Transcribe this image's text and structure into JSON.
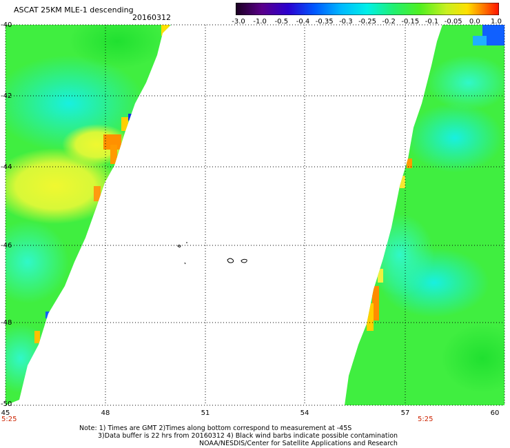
{
  "header": {
    "title": "ASCAT 25KM MLE-1 descending",
    "date": "20160312"
  },
  "colorbar": {
    "ticks": [
      "-3.0",
      "-1.0",
      "-0.5",
      "-0.4",
      "-0.35",
      "-0.3",
      "-0.25",
      "-0.2",
      "-0.15",
      "-0.1",
      "-0.05",
      "0.0",
      "1.0"
    ],
    "colors": [
      "#2a0030",
      "#5a008a",
      "#3000d0",
      "#0060ff",
      "#00a8ff",
      "#00e8ff",
      "#00f0b0",
      "#30f030",
      "#90f020",
      "#e0ff20",
      "#ffd000",
      "#ff6010",
      "#ff1000"
    ]
  },
  "map": {
    "lat_labels": [
      "-40",
      "-42",
      "-44",
      "-46",
      "-48",
      "-50"
    ],
    "lon_labels": [
      "45",
      "48",
      "51",
      "54",
      "57",
      "60"
    ],
    "time_left": "5:25",
    "time_right": "5:25",
    "swath_colors": {
      "green": "#3ef03a",
      "light_green": "#6ef85a",
      "cyan": "#18f0e0",
      "aqua": "#30f8b8",
      "yellow": "#e8f830",
      "orange": "#ff8c00",
      "blue": "#1050ff"
    }
  },
  "notes": [
    "Note: 1) Times are GMT 2)Times along bottom correspond to measurement at -45S",
    "3)Data buffer is 22 hrs from 20160312 4) Black wind barbs indicate possible contamination",
    "NOAA/NESDIS/Center for Satellite Applications and Research"
  ]
}
